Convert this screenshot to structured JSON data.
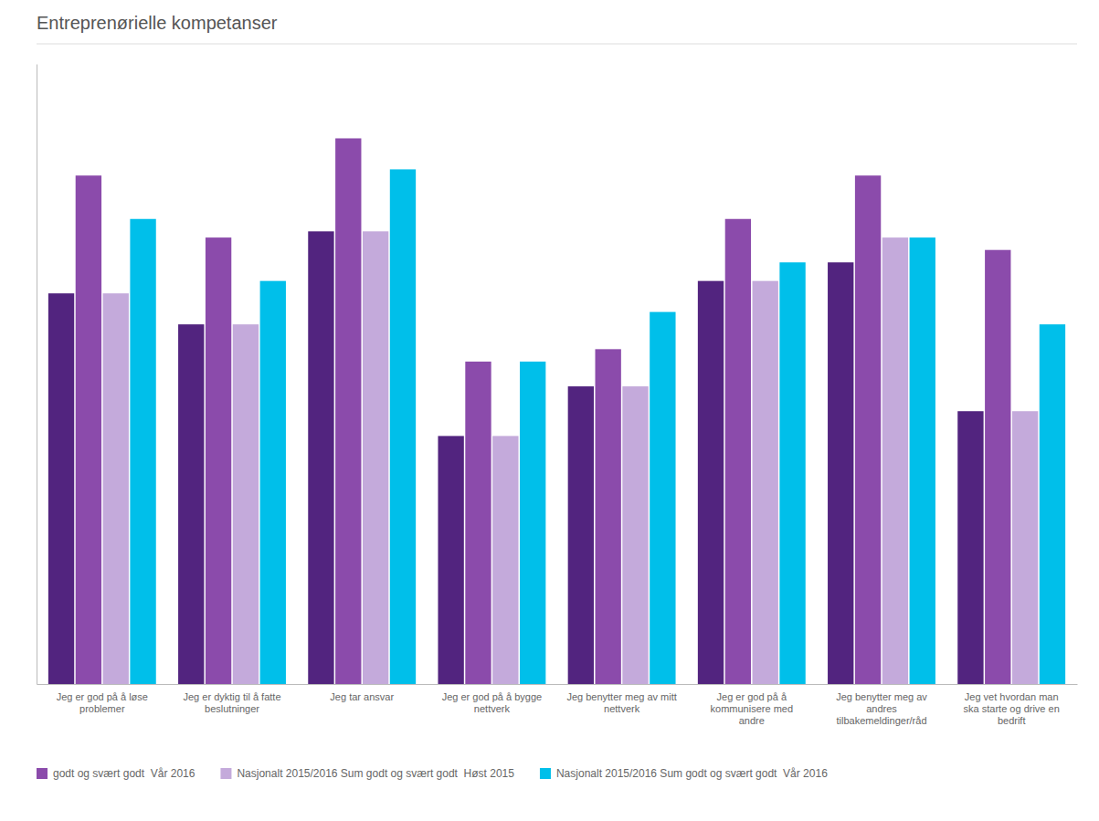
{
  "chart_data": {
    "type": "bar",
    "title": "Entreprenørielle kompetanser",
    "categories": [
      "Jeg er god på å løse\nproblemer",
      "Jeg er dyktig til å fatte\nbeslutninger",
      "Jeg tar ansvar",
      "Jeg er god på å bygge\nnettverk",
      "Jeg benytter meg av mitt\nnettverk",
      "Jeg er god på å\nkommunisere med\nandre",
      "Jeg benytter meg av\nandres\ntilbakemeldinger/råd",
      "Jeg vet hvordan man\nska starte og drive en\nbedrift"
    ],
    "series": [
      {
        "color": "#52247F",
        "values": [
          63,
          58,
          73,
          40,
          48,
          65,
          68,
          44
        ]
      },
      {
        "name": "godt og svært godt  Vår 2016",
        "color": "#8B4BAB",
        "values": [
          82,
          72,
          88,
          52,
          54,
          75,
          82,
          70
        ]
      },
      {
        "name": "Nasjonalt 2015/2016 Sum godt og svært godt  Høst 2015",
        "color": "#C4AADB",
        "values": [
          63,
          58,
          73,
          40,
          48,
          65,
          72,
          44
        ]
      },
      {
        "name": "Nasjonalt 2015/2016 Sum godt og svært godt  Vår 2016",
        "color": "#00BFEA",
        "values": [
          75,
          65,
          83,
          52,
          60,
          68,
          72,
          58
        ]
      }
    ],
    "ylim": [
      0,
      100
    ],
    "yticks": [],
    "grid": false,
    "tick_labels": "x",
    "legend": "bottom"
  }
}
